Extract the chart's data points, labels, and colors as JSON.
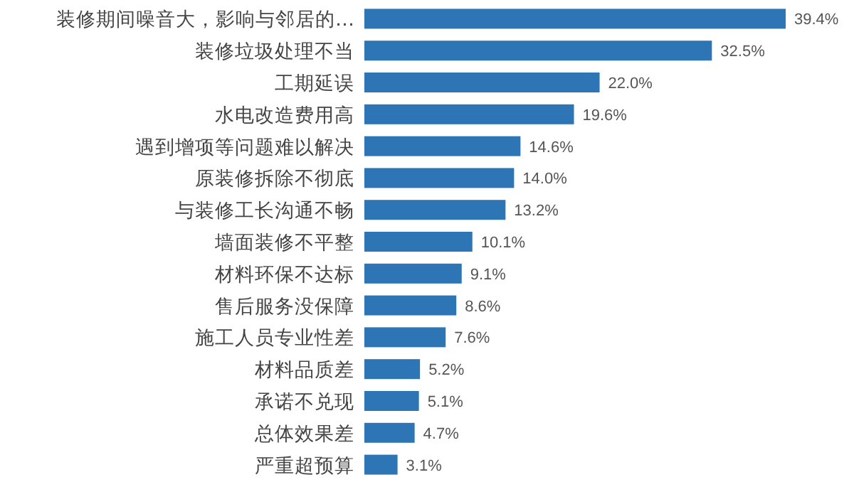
{
  "chart_data": {
    "type": "bar",
    "orientation": "horizontal",
    "categories": [
      "装修期间噪音大，影响与邻居的…",
      "装修垃圾处理不当",
      "工期延误",
      "水电改造费用高",
      "遇到增项等问题难以解决",
      "原装修拆除不彻底",
      "与装修工长沟通不畅",
      "墙面装修不平整",
      "材料环保不达标",
      "售后服务没保障",
      "施工人员专业性差",
      "材料品质差",
      "承诺不兑现",
      "总体效果差",
      "严重超预算"
    ],
    "values": [
      39.4,
      32.5,
      22.0,
      19.6,
      14.6,
      14.0,
      13.2,
      10.1,
      9.1,
      8.6,
      7.6,
      5.2,
      5.1,
      4.7,
      3.1
    ],
    "value_labels": [
      "39.4%",
      "32.5%",
      "22.0%",
      "19.6%",
      "14.6%",
      "14.0%",
      "13.2%",
      "10.1%",
      "9.1%",
      "8.6%",
      "7.6%",
      "5.2%",
      "5.1%",
      "4.7%",
      "3.1%"
    ],
    "color": "#2e75b6"
  }
}
